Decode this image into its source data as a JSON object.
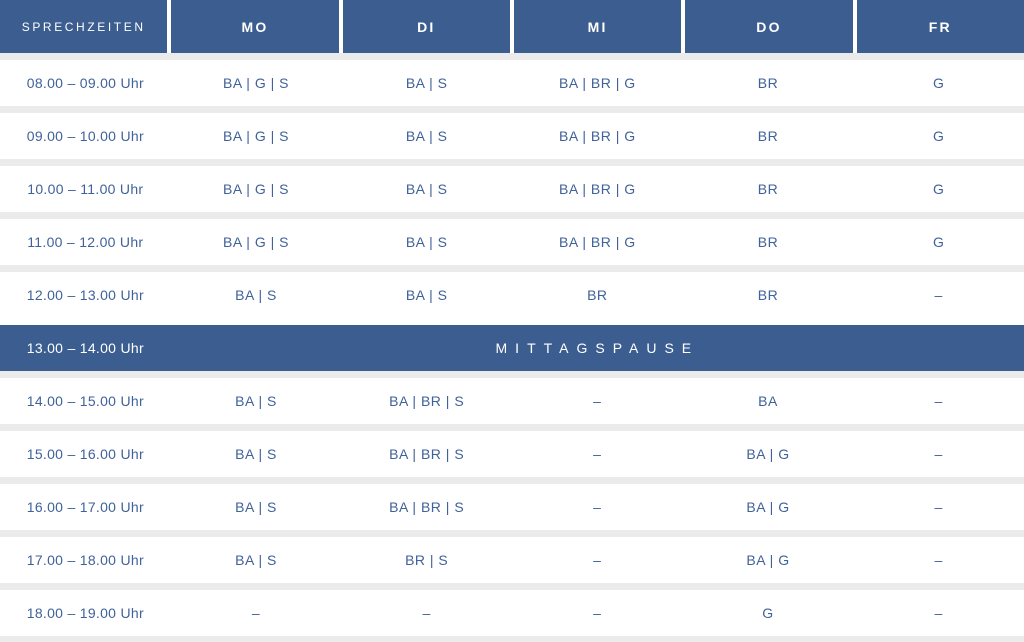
{
  "table": {
    "header": {
      "time_label": "SPRECHZEITEN",
      "days": [
        "MO",
        "DI",
        "MI",
        "DO",
        "FR"
      ]
    },
    "rows": [
      {
        "time": "08.00 – 09.00 Uhr",
        "mo": "BA | G | S",
        "di": "BA | S",
        "mi": "BA | BR | G",
        "do": "BR",
        "fr": "G"
      },
      {
        "time": "09.00 – 10.00 Uhr",
        "mo": "BA | G | S",
        "di": "BA | S",
        "mi": "BA | BR | G",
        "do": "BR",
        "fr": "G"
      },
      {
        "time": "10.00 – 11.00 Uhr",
        "mo": "BA | G | S",
        "di": "BA | S",
        "mi": "BA | BR | G",
        "do": "BR",
        "fr": "G"
      },
      {
        "time": "11.00 – 12.00 Uhr",
        "mo": "BA | G | S",
        "di": "BA | S",
        "mi": "BA | BR | G",
        "do": "BR",
        "fr": "G"
      },
      {
        "time": "12.00 – 13.00 Uhr",
        "mo": "BA | S",
        "di": "BA | S",
        "mi": "BR",
        "do": "BR",
        "fr": "–"
      },
      {
        "time": "14.00 – 15.00 Uhr",
        "mo": "BA | S",
        "di": "BA | BR | S",
        "mi": "–",
        "do": "BA",
        "fr": "–"
      },
      {
        "time": "15.00 – 16.00 Uhr",
        "mo": "BA | S",
        "di": "BA | BR | S",
        "mi": "–",
        "do": "BA | G",
        "fr": "–"
      },
      {
        "time": "16.00 – 17.00 Uhr",
        "mo": "BA | S",
        "di": "BA | BR | S",
        "mi": "–",
        "do": "BA | G",
        "fr": "–"
      },
      {
        "time": "17.00 – 18.00 Uhr",
        "mo": "BA | S",
        "di": "BR | S",
        "mi": "–",
        "do": "BA | G",
        "fr": "–"
      },
      {
        "time": "18.00 – 19.00 Uhr",
        "mo": "–",
        "di": "–",
        "mi": "–",
        "do": "G",
        "fr": "–"
      }
    ],
    "lunch": {
      "time": "13.00 – 14.00 Uhr",
      "label": "MITTAGSPAUSE"
    }
  },
  "colors": {
    "header_bg": "#3b5d8f",
    "lunch_bg": "#3b5d8f",
    "row_bg": "#ffffff",
    "separator": "#ebebeb",
    "body_text": "#40629a",
    "header_text": "#ffffff"
  }
}
